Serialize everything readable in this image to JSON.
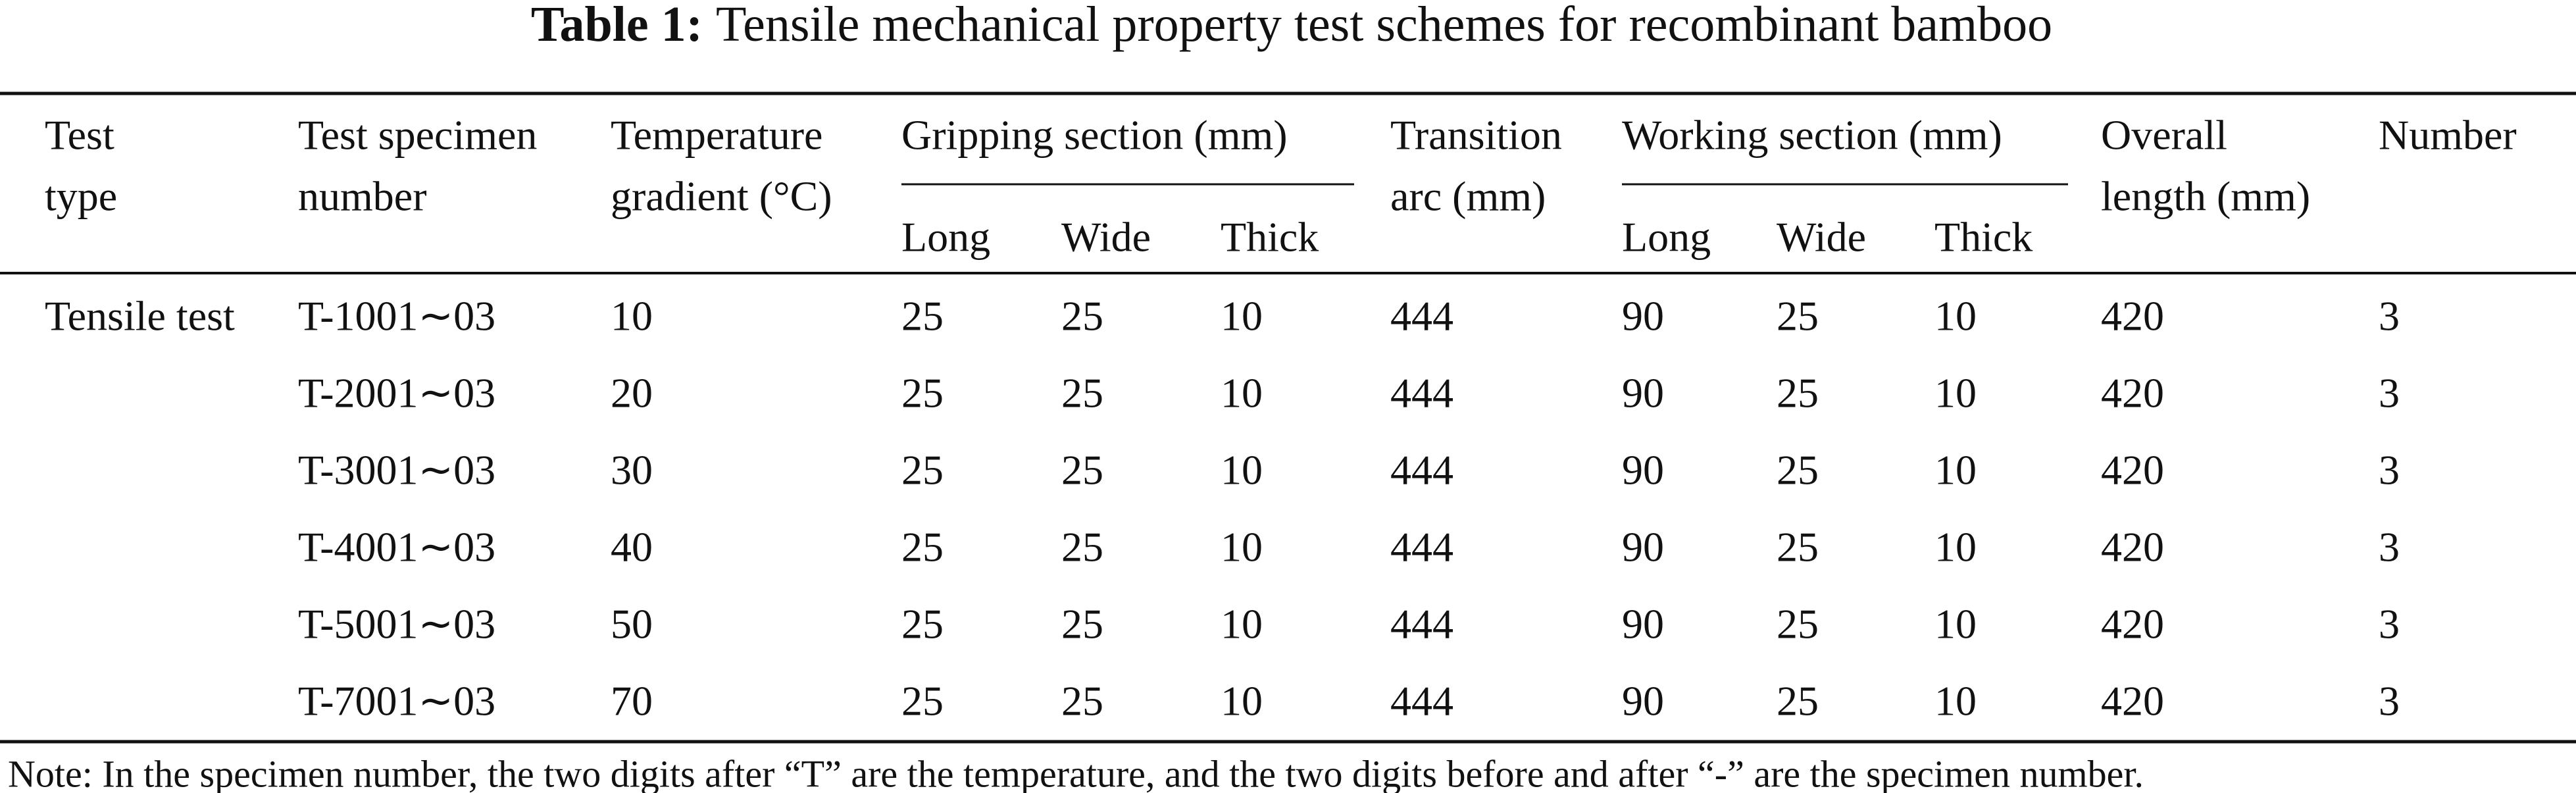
{
  "title": {
    "label": "Table 1:",
    "text": "Tensile mechanical property test schemes for recombinant bamboo"
  },
  "table": {
    "header": [
      [
        "Test",
        "type"
      ],
      [
        "Test specimen",
        "number"
      ],
      [
        "Temperature",
        "gradient (°C)"
      ],
      [
        "Gripping section (mm)"
      ],
      [
        "Transition",
        "arc (mm)"
      ],
      [
        "Working section (mm)"
      ],
      [
        "Overall",
        "length (mm)"
      ],
      [
        "Number"
      ]
    ],
    "subheader": [
      "Long",
      "Wide",
      "Thick",
      "Long",
      "Wide",
      "Thick"
    ],
    "test_type": "Tensile test",
    "rows": [
      [
        "T-1001∼03",
        10,
        25,
        25,
        10,
        444,
        90,
        25,
        10,
        420,
        3
      ],
      [
        "T-2001∼03",
        20,
        25,
        25,
        10,
        444,
        90,
        25,
        10,
        420,
        3
      ],
      [
        "T-3001∼03",
        30,
        25,
        25,
        10,
        444,
        90,
        25,
        10,
        420,
        3
      ],
      [
        "T-4001∼03",
        40,
        25,
        25,
        10,
        444,
        90,
        25,
        10,
        420,
        3
      ],
      [
        "T-5001∼03",
        50,
        25,
        25,
        10,
        444,
        90,
        25,
        10,
        420,
        3
      ],
      [
        "T-7001∼03",
        70,
        25,
        25,
        10,
        444,
        90,
        25,
        10,
        420,
        3
      ]
    ]
  },
  "note": "Note: In the specimen number, the two digits after “T” are the temperature, and the two digits before and after “-” are the specimen number."
}
